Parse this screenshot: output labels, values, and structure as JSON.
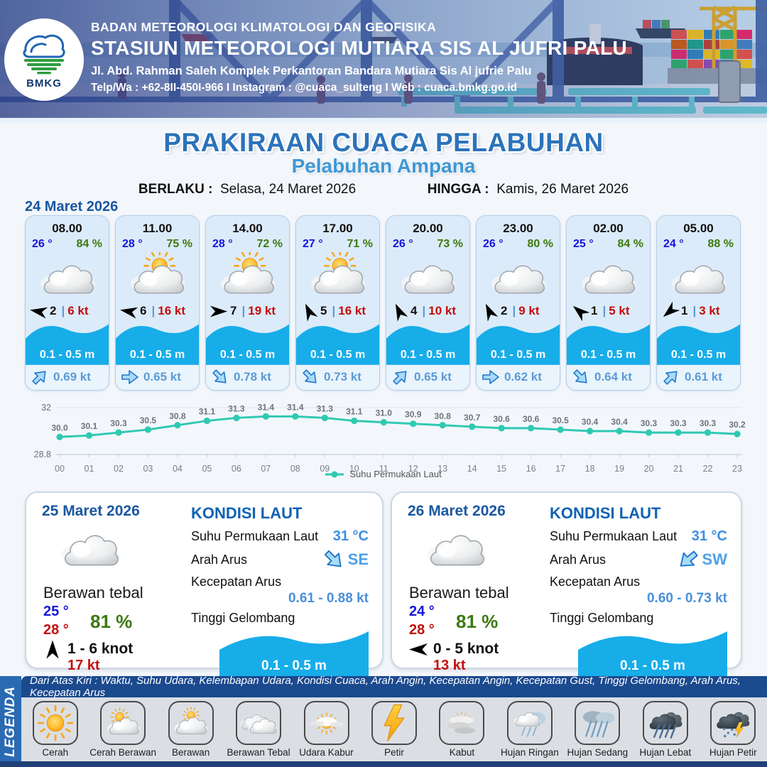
{
  "header": {
    "line1": "BADAN METEOROLOGI KLIMATOLOGI DAN GEOFISIKA",
    "line2": "STASIUN METEOROLOGI MUTIARA SIS AL JUFRI PALU",
    "line3": "Jl. Abd. Rahman Saleh Komplek Perkantoran Bandara Mutiara Sis Al jufrie Palu",
    "line4": "Telp/Wa : +62-8II-450I-966  I  Instagram : @cuaca_sulteng  I  Web : cuaca.bmkg.go.id",
    "logo_text": "BMKG"
  },
  "title": {
    "main": "PRAKIRAAN CUACA PELABUHAN",
    "sub": "Pelabuhan Ampana"
  },
  "validity": {
    "berlaku_label": "BERLAKU :",
    "berlaku": "Selasa, 24 Maret 2026",
    "hingga_label": "HINGGA :",
    "hingga": "Kamis, 26 Maret 2026"
  },
  "forecast_date": "24 Maret 2026",
  "labels": {
    "sep": "|"
  },
  "cards": [
    {
      "time": "08.00",
      "temp": "26 °",
      "humidity": "84 %",
      "icon": "cloud",
      "wind_dir": "WNW",
      "wind_force": "2",
      "wind_speed": "6 kt",
      "wave_height": "0.1 - 0.5 m",
      "current_dir": "NE",
      "current_speed": "0.69 kt"
    },
    {
      "time": "11.00",
      "temp": "28 °",
      "humidity": "75 %",
      "icon": "sun-cloud",
      "wind_dir": "WNW",
      "wind_force": "6",
      "wind_speed": "16 kt",
      "wave_height": "0.1 - 0.5 m",
      "current_dir": "E",
      "current_speed": "0.65 kt"
    },
    {
      "time": "14.00",
      "temp": "28 °",
      "humidity": "72 %",
      "icon": "sun-cloud",
      "wind_dir": "E",
      "wind_force": "7",
      "wind_speed": "19 kt",
      "wave_height": "0.1 - 0.5 m",
      "current_dir": "SE",
      "current_speed": "0.78 kt"
    },
    {
      "time": "17.00",
      "temp": "27 °",
      "humidity": "71 %",
      "icon": "sun-cloud",
      "wind_dir": "NNW",
      "wind_force": "5",
      "wind_speed": "16 kt",
      "wave_height": "0.1 - 0.5 m",
      "current_dir": "SE",
      "current_speed": "0.73 kt"
    },
    {
      "time": "20.00",
      "temp": "26 °",
      "humidity": "73 %",
      "icon": "cloud",
      "wind_dir": "NNW",
      "wind_force": "4",
      "wind_speed": "10 kt",
      "wave_height": "0.1 - 0.5 m",
      "current_dir": "NE",
      "current_speed": "0.65 kt"
    },
    {
      "time": "23.00",
      "temp": "26 °",
      "humidity": "80 %",
      "icon": "cloud",
      "wind_dir": "NNW",
      "wind_force": "2",
      "wind_speed": "9 kt",
      "wave_height": "0.1 - 0.5 m",
      "current_dir": "E",
      "current_speed": "0.62 kt"
    },
    {
      "time": "02.00",
      "temp": "25 °",
      "humidity": "84 %",
      "icon": "cloud",
      "wind_dir": "NW",
      "wind_force": "1",
      "wind_speed": "5 kt",
      "wave_height": "0.1 - 0.5 m",
      "current_dir": "SE",
      "current_speed": "0.64 kt"
    },
    {
      "time": "05.00",
      "temp": "24 °",
      "humidity": "88 %",
      "icon": "cloud",
      "wind_dir": "SW",
      "wind_force": "1",
      "wind_speed": "3 kt",
      "wave_height": "0.1 - 0.5 m",
      "current_dir": "NE",
      "current_speed": "0.61 kt"
    }
  ],
  "chart_data": {
    "type": "line",
    "x": [
      "00",
      "01",
      "02",
      "03",
      "04",
      "05",
      "06",
      "07",
      "08",
      "09",
      "10",
      "11",
      "12",
      "13",
      "14",
      "15",
      "16",
      "17",
      "18",
      "19",
      "20",
      "21",
      "22",
      "23"
    ],
    "series": [
      {
        "name": "Suhu Permukaan Laut",
        "values": [
          30.0,
          30.1,
          30.3,
          30.5,
          30.8,
          31.1,
          31.3,
          31.4,
          31.4,
          31.3,
          31.1,
          31.0,
          30.9,
          30.8,
          30.7,
          30.6,
          30.6,
          30.5,
          30.4,
          30.4,
          30.3,
          30.3,
          30.3,
          30.2
        ]
      }
    ],
    "ylim": [
      28.8,
      32
    ],
    "line_color": "#2fc9b2",
    "legend_position": "bottom",
    "grid": false
  },
  "day_summaries": [
    {
      "date": "25 Maret 2026",
      "condition": "Berawan tebal",
      "icon": "cloud",
      "temp_min": "25 °",
      "temp_max": "28 °",
      "humidity": "81 %",
      "wind_dir": "N",
      "wind_range": "1  - 6 knot",
      "gust": "17 kt",
      "sea": {
        "heading": "KONDISI LAUT",
        "sst_label": "Suhu Permukaan Laut",
        "sst": "31 °C",
        "current_dir_label": "Arah Arus",
        "current_dir": "SE",
        "current_speed_label": "Kecepatan Arus",
        "current_speed": "0.61  - 0.88 kt",
        "wave_label": "Tinggi Gelombang",
        "wave": "0.1 - 0.5 m"
      }
    },
    {
      "date": "26 Maret 2026",
      "condition": "Berawan tebal",
      "icon": "cloud",
      "temp_min": "24 °",
      "temp_max": "28 °",
      "humidity": "81 %",
      "wind_dir": "W",
      "wind_range": "0  - 5 knot",
      "gust": "13 kt",
      "sea": {
        "heading": "KONDISI LAUT",
        "sst_label": "Suhu Permukaan Laut",
        "sst": "31 °C",
        "current_dir_label": "Arah Arus",
        "current_dir": "SW",
        "current_speed_label": "Kecepatan Arus",
        "current_speed": "0.60  - 0.73 kt",
        "wave_label": "Tinggi Gelombang",
        "wave": "0.1 - 0.5 m"
      }
    }
  ],
  "legend": {
    "title": "LEGENDA",
    "description": "Dari Atas Kiri : Waktu, Suhu Udara, Kelembapan Udara, Kondisi Cuaca, Arah Angin, Kecepatan Angin, Kecepatan Gust, Tinggi Gelombang, Arah Arus, Kecepatan Arus",
    "items": [
      {
        "label": "Cerah"
      },
      {
        "label": "Cerah Berawan"
      },
      {
        "label": "Berawan"
      },
      {
        "label": "Berawan Tebal"
      },
      {
        "label": "Udara Kabur"
      },
      {
        "label": "Petir"
      },
      {
        "label": "Kabut"
      },
      {
        "label": "Hujan Ringan"
      },
      {
        "label": "Hujan Sedang"
      },
      {
        "label": "Hujan Lebat"
      },
      {
        "label": "Hujan Petir"
      }
    ]
  },
  "colors": {
    "title_blue": "#2b73ba",
    "subtitle_blue": "#3e97d4",
    "temp_blue": "#1414dd",
    "humidity_green": "#3c7a10",
    "speed_red": "#c40d0d",
    "wave_blue": "#17ade9",
    "sst_line_teal": "#2fc9b2",
    "legend_bar_blue": "#1b4a8f"
  }
}
